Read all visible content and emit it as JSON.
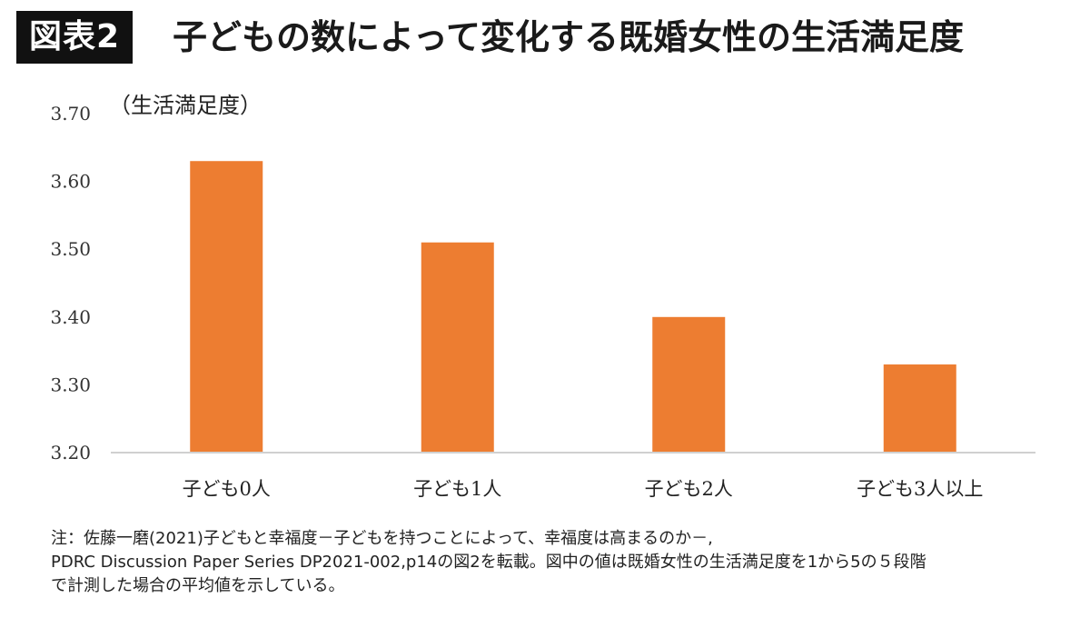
{
  "header": {
    "figure_label": "図表2",
    "title": "子どもの数によって変化する既婚女性の生活満足度"
  },
  "chart_data": {
    "type": "bar",
    "ylabel": "（生活満足度）",
    "xlabel": "",
    "categories": [
      "子ども0人",
      "子ども1人",
      "子ども2人",
      "子ども3人以上"
    ],
    "values": [
      3.63,
      3.51,
      3.4,
      3.33
    ],
    "ylim": [
      3.2,
      3.7
    ],
    "yticks": [
      "3.70",
      "3.60",
      "3.50",
      "3.40",
      "3.30",
      "3.20"
    ],
    "bar_color": "#ED7D31",
    "axis_color": "#d0d0d0",
    "grid": false
  },
  "notes": {
    "line1": "注：佐藤一磨(2021)子どもと幸福度－子どもを持つことによって、幸福度は高まるのか－,",
    "line2": "PDRC Discussion Paper Series DP2021-002,p14の図2を転載。図中の値は既婚女性の生活満足度を1から5の５段階",
    "line3": "で計測した場合の平均値を示している。"
  }
}
